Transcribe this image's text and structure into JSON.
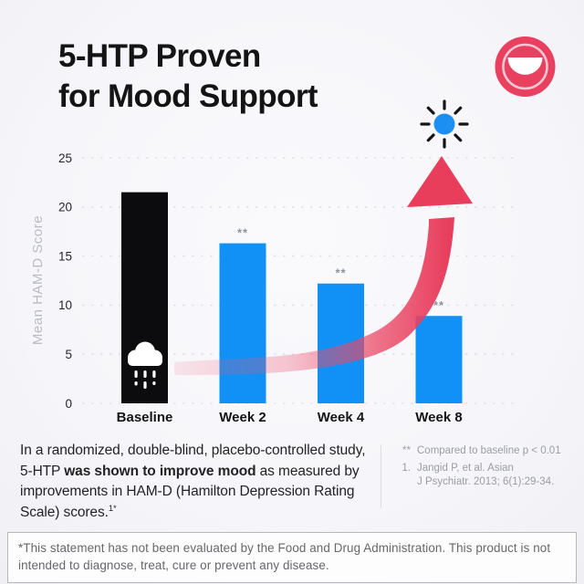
{
  "header": {
    "title_line1": "5-HTP Proven",
    "title_line2": "for Mood Support"
  },
  "logo": {
    "name": "smile-brand-mark",
    "color": "#e9405f"
  },
  "chart_data": {
    "type": "bar",
    "title": "",
    "categories": [
      "Baseline",
      "Week 2",
      "Week 4",
      "Week 8"
    ],
    "values": [
      21.5,
      16.3,
      12.2,
      8.9
    ],
    "bar_colors": [
      "#0c0c0e",
      "#1190f5",
      "#1190f5",
      "#1190f5"
    ],
    "significance_markers": [
      "",
      "**",
      "**",
      "**"
    ],
    "xlabel": "",
    "ylabel": "Mean HAM-D Score",
    "ylim": [
      0,
      25
    ],
    "yticks": [
      0,
      5,
      10,
      15,
      20,
      25
    ],
    "grid": "horizontal-dashed",
    "legend": "none",
    "annotations": {
      "baseline_icon": "rain-cloud",
      "endpoint_icon": "sun",
      "trend_arrow": "upward curved arrow from Baseline to Week 8",
      "arrow_color": "#e83e5c",
      "sun_color": "#1b8ff2"
    }
  },
  "footnote": {
    "text_before": "In a randomized, double-blind, placebo-controlled study, 5-HTP ",
    "text_bold": "was shown to improve mood",
    "text_after": " as measured by improvements in HAM-D (Hamilton Depression Rating Scale) scores.",
    "superscript": "1*"
  },
  "references": {
    "sig_marker": "**",
    "sig_text": "Compared to baseline p < 0.01",
    "ref_number": "1.",
    "ref_line1": "Jangid P, et al. Asian",
    "ref_line2": "J Psychiatr. 2013; 6(1):29-34."
  },
  "disclaimer": {
    "text": "*This statement has not been evaluated by the Food and Drug Administration. This product is not intended to diagnose, treat, cure or prevent any disease."
  }
}
